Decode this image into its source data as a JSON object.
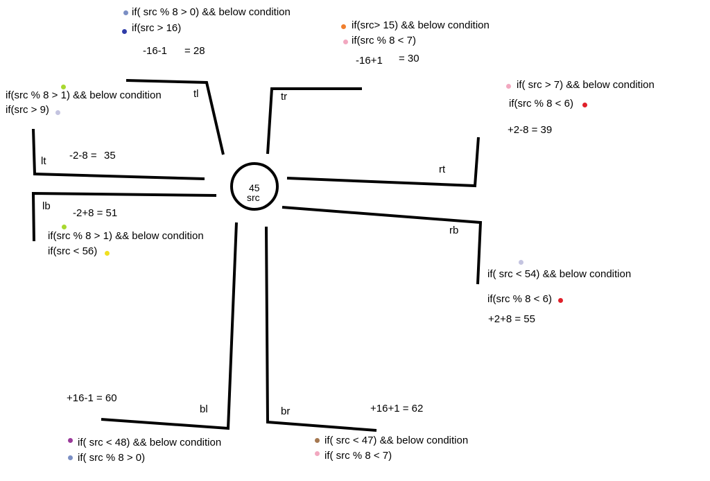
{
  "center": {
    "value": "45",
    "label": "src"
  },
  "moves": {
    "tl": {
      "label": "tl",
      "cond1": "if( src % 8 > 0) && below condition",
      "cond2": "if(src > 16)",
      "calc": "-16-1",
      "result": "= 28",
      "dot1_color": "#7b8fc4",
      "dot2_color": "#2f3ca8"
    },
    "tr": {
      "label": "tr",
      "cond1": "if(src> 15) && below condition",
      "cond2": "if(src % 8 < 7)",
      "calc": "-16+1",
      "result": "= 30",
      "dot1_color": "#f07f2e",
      "dot2_color": "#f2a8c0"
    },
    "rt": {
      "label": "rt",
      "cond1": "if( src > 7) && below condition",
      "cond2": "if(src % 8 < 6)",
      "calc": "+2-8 = 39",
      "dot1_color": "#f2a8c0",
      "dot2_color": "#e0202a"
    },
    "rb": {
      "label": "rb",
      "cond1": "if( src < 54) && below condition",
      "cond2": "if(src % 8 < 6)",
      "calc": "+2+8 = 55",
      "dot1_color": "#c4c4e0",
      "dot2_color": "#e0202a"
    },
    "br": {
      "label": "br",
      "cond1": "if( src < 47) && below condition",
      "cond2": "if( src % 8 < 7)",
      "calc": "+16+1 = 62",
      "dot1_color": "#a57850",
      "dot2_color": "#f2a8c0"
    },
    "bl": {
      "label": "bl",
      "cond1": "if( src < 48) && below condition",
      "cond2": "if( src % 8 > 0)",
      "calc": "+16-1 = 60",
      "dot1_color": "#9a3a9a",
      "dot2_color": "#7b8fc4"
    },
    "lb": {
      "label": "lb",
      "cond1": "if(src % 8 > 1) && below condition",
      "cond2": "if(src < 56)",
      "calc": "-2+8 = 51",
      "dot1_color": "#a8d830",
      "dot2_color": "#f0e020"
    },
    "lt": {
      "label": "lt",
      "cond1": "if(src % 8 > 1) && below condition",
      "cond2": "if(src > 9)",
      "calc": "-2-8 =",
      "result": "35",
      "dot1_color": "#a8d830",
      "dot2_color": "#c4c4e0"
    }
  }
}
